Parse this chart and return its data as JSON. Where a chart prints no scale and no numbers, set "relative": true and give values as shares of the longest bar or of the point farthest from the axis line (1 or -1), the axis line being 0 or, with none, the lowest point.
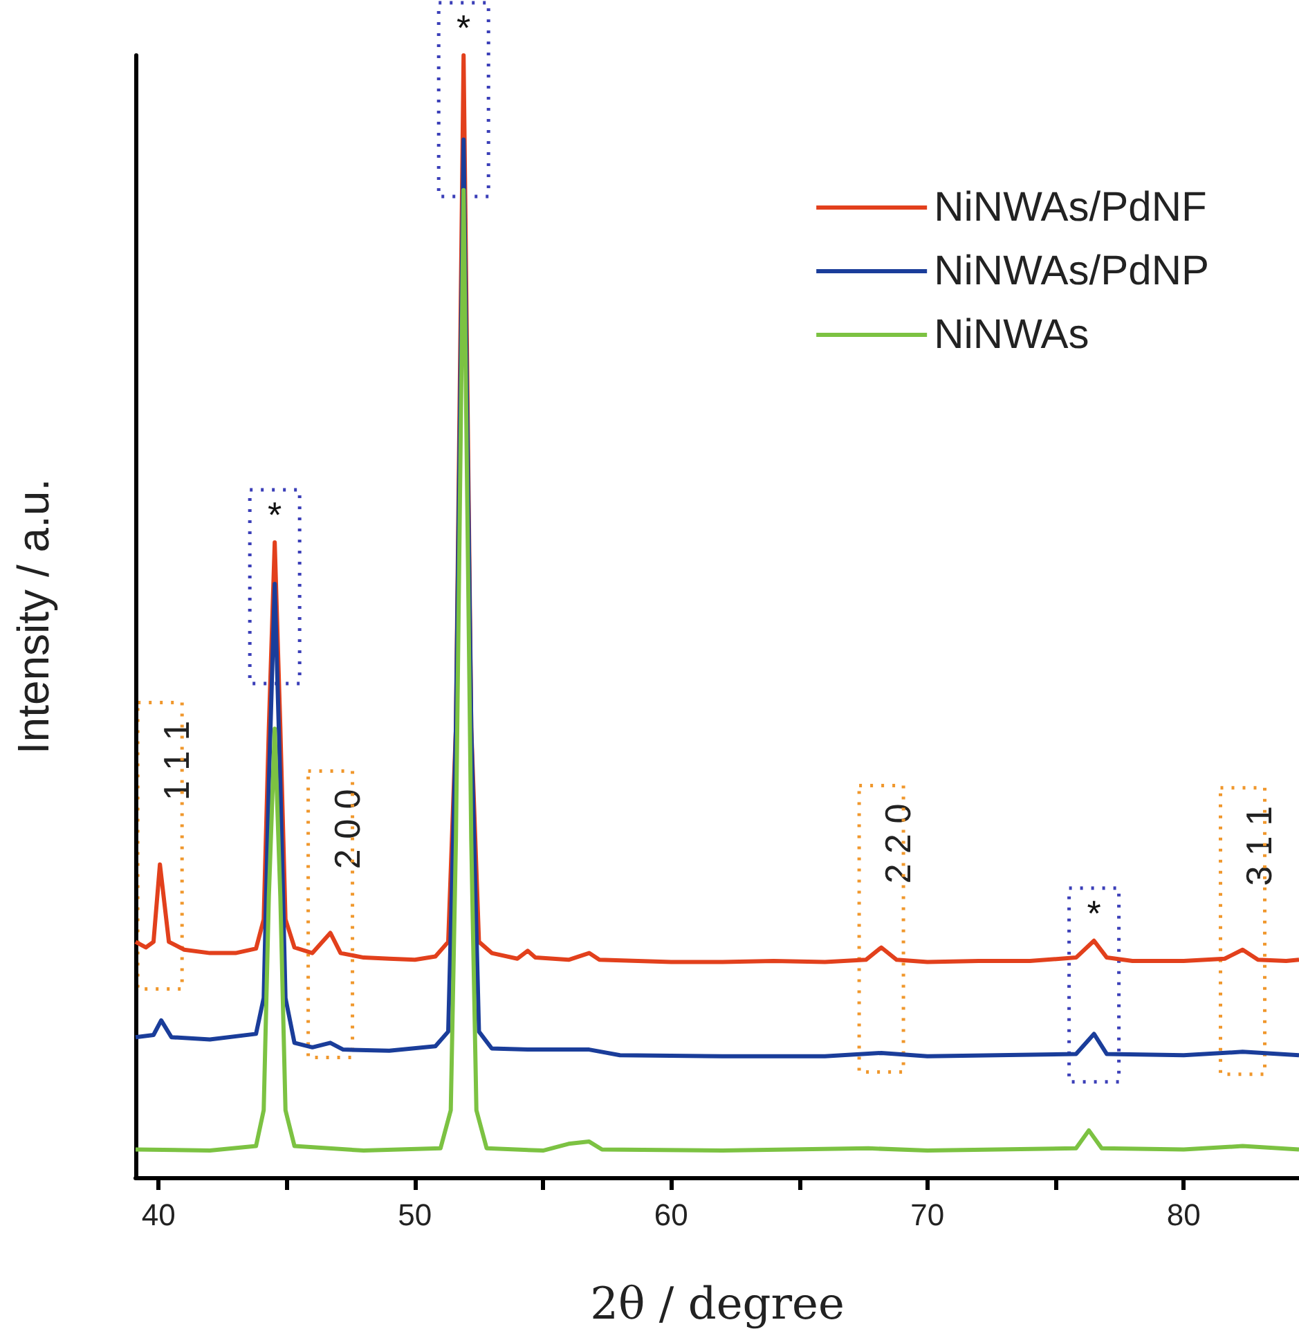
{
  "chart_data": {
    "type": "line",
    "relative": true,
    "xlabel": "2θ / degree",
    "ylabel": "Intensity / a.u.",
    "xlim": [
      39.1,
      84.5
    ],
    "xticks": [
      40,
      {
        "value": 45,
        "label": null
      },
      50,
      {
        "value": 55,
        "label": null
      },
      60,
      {
        "value": 65,
        "label": null
      },
      70,
      {
        "value": 75,
        "label": null
      },
      80
    ],
    "tick_labels": "x",
    "legend": "top right",
    "grid": false,
    "marker": "none",
    "line_style": "solid",
    "series": [
      {
        "name": "NiNWAs/PdNF",
        "color": "#e2401c",
        "x": [
          39.1,
          39.5,
          39.8,
          40.05,
          40.4,
          41,
          42,
          43,
          43.8,
          44.1,
          44.3,
          44.53,
          44.75,
          44.95,
          45.3,
          46,
          46.7,
          47.1,
          48,
          49,
          50,
          50.8,
          51.3,
          51.6,
          51.9,
          52.2,
          52.5,
          53,
          54,
          54.4,
          54.7,
          56,
          56.8,
          57.2,
          60,
          62,
          64,
          66,
          67.6,
          68.2,
          68.8,
          70,
          72,
          74,
          75.8,
          76.5,
          77,
          78,
          80,
          81.6,
          82.3,
          82.9,
          84,
          84.5
        ],
        "values": [
          0.21,
          0.205,
          0.21,
          0.279,
          0.21,
          0.203,
          0.2,
          0.2,
          0.204,
          0.23,
          0.4,
          0.566,
          0.4,
          0.23,
          0.205,
          0.2,
          0.218,
          0.2,
          0.196,
          0.195,
          0.194,
          0.197,
          0.21,
          0.4,
          1.0,
          0.4,
          0.21,
          0.2,
          0.195,
          0.202,
          0.196,
          0.194,
          0.2,
          0.194,
          0.192,
          0.192,
          0.193,
          0.192,
          0.194,
          0.205,
          0.194,
          0.192,
          0.193,
          0.193,
          0.196,
          0.211,
          0.196,
          0.193,
          0.193,
          0.195,
          0.203,
          0.194,
          0.193,
          0.194
        ]
      },
      {
        "name": "NiNWAs/PdNP",
        "color": "#1a3d9a",
        "x": [
          39.1,
          39.8,
          40.1,
          40.5,
          42,
          43.8,
          44.1,
          44.3,
          44.53,
          44.75,
          44.95,
          45.3,
          46,
          46.7,
          47.2,
          49,
          50.8,
          51.3,
          51.6,
          51.9,
          52.2,
          52.5,
          53,
          54.4,
          56.8,
          58,
          62,
          66,
          68.2,
          70,
          75.8,
          76.5,
          77,
          80,
          82.3,
          84.5
        ],
        "values": [
          0.125,
          0.127,
          0.14,
          0.125,
          0.123,
          0.128,
          0.16,
          0.35,
          0.529,
          0.35,
          0.16,
          0.12,
          0.116,
          0.12,
          0.114,
          0.113,
          0.117,
          0.13,
          0.4,
          0.925,
          0.4,
          0.13,
          0.115,
          0.114,
          0.114,
          0.109,
          0.108,
          0.108,
          0.111,
          0.108,
          0.11,
          0.128,
          0.11,
          0.109,
          0.112,
          0.109
        ]
      },
      {
        "name": "NiNWAs",
        "color": "#7cc242",
        "x": [
          39.1,
          42,
          43.8,
          44.1,
          44.3,
          44.53,
          44.75,
          44.95,
          45.3,
          48,
          51,
          51.4,
          51.6,
          51.9,
          52.2,
          52.4,
          52.8,
          55,
          56,
          56.8,
          57.3,
          62,
          67.7,
          70,
          75.8,
          76.3,
          76.8,
          80,
          82.3,
          84.5
        ],
        "values": [
          0.025,
          0.024,
          0.028,
          0.06,
          0.25,
          0.4,
          0.25,
          0.06,
          0.028,
          0.024,
          0.026,
          0.06,
          0.3,
          0.88,
          0.3,
          0.06,
          0.026,
          0.024,
          0.03,
          0.032,
          0.025,
          0.024,
          0.026,
          0.024,
          0.026,
          0.042,
          0.026,
          0.025,
          0.028,
          0.025
        ]
      }
    ],
    "annotations": [
      {
        "text": "*",
        "x": 44.53,
        "y": 0.566
      },
      {
        "text": "*",
        "x": 51.9,
        "y": 1.0
      },
      {
        "text": "*",
        "x": 76.5,
        "y": 0.211
      },
      {
        "text": "1 1 1",
        "x": 40.05,
        "y": 0.279
      },
      {
        "text": "2 0 0",
        "x": 46.7,
        "y": 0.218
      },
      {
        "text": "2 2 0",
        "x": 68.2,
        "y": 0.205
      },
      {
        "text": "3 1 1",
        "x": 82.3,
        "y": 0.203
      }
    ]
  }
}
